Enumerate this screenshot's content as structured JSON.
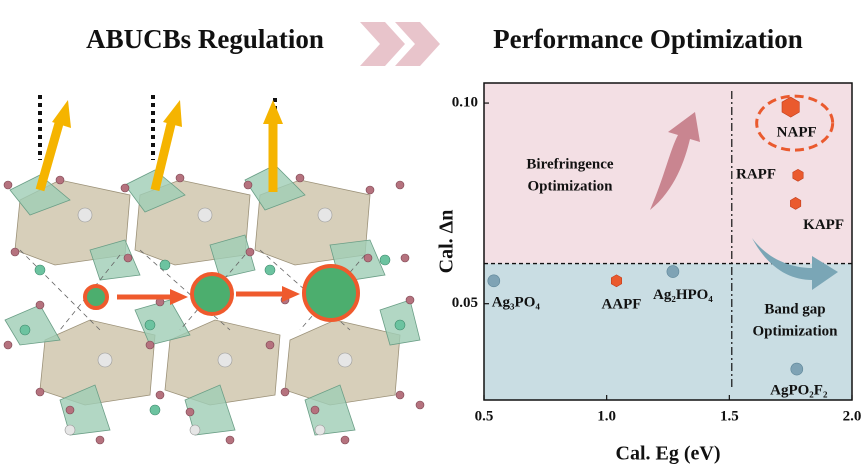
{
  "headings": {
    "left": "ABUCBs Regulation",
    "right": "Performance Optimization"
  },
  "chart_data": {
    "type": "scatter",
    "x_label": "Cal. Eg (eV)",
    "y_label": "Cal. Δn",
    "xlim": [
      0.5,
      2.0
    ],
    "xticks": [
      {
        "value": 0.5,
        "label": "0.5"
      },
      {
        "value": 1.0,
        "label": "1.0"
      },
      {
        "value": 1.5,
        "label": "1.5"
      },
      {
        "value": 2.0,
        "label": "2.0"
      }
    ],
    "ylim": [
      0.026,
      0.105
    ],
    "yticks": [
      0.05,
      {
        "value": 0.1,
        "label": "0.10"
      }
    ],
    "reference_lines": {
      "x": 1.51,
      "y": 0.06
    },
    "region_colors": {
      "upper": "#f3dfe4",
      "lower": "#c9dde3"
    },
    "annotations": [
      {
        "lines": [
          "Birefringence",
          "Optimization"
        ]
      },
      {
        "lines": [
          "Band gap",
          "Optimization"
        ]
      }
    ],
    "series": [
      {
        "name": "Ag₃PO₄",
        "color": "#7fa3b5",
        "marker": "circle",
        "x": [
          0.54
        ],
        "values": [
          0.0557
        ]
      },
      {
        "name": "AAPF",
        "color": "#ea5a2e",
        "marker": "hexagon",
        "x": [
          1.04
        ],
        "values": [
          0.0557
        ]
      },
      {
        "name": "Ag₂HPO₄",
        "color": "#7fa3b5",
        "marker": "circle",
        "x": [
          1.27
        ],
        "values": [
          0.058
        ]
      },
      {
        "name": "AgPO₂F₂",
        "color": "#7fa3b5",
        "marker": "circle",
        "x": [
          1.775
        ],
        "values": [
          0.0337
        ]
      },
      {
        "name": "KAPF",
        "color": "#ea5a2e",
        "marker": "hexagon",
        "x": [
          1.77
        ],
        "values": [
          0.075
        ]
      },
      {
        "name": "RAPF",
        "color": "#ea5a2e",
        "marker": "hexagon",
        "x": [
          1.78
        ],
        "values": [
          0.082
        ]
      },
      {
        "name": "NAPF",
        "color": "#ea5a2e",
        "marker": "hexagon",
        "highlight": true,
        "x": [
          1.75
        ],
        "values": [
          0.099
        ]
      }
    ]
  }
}
